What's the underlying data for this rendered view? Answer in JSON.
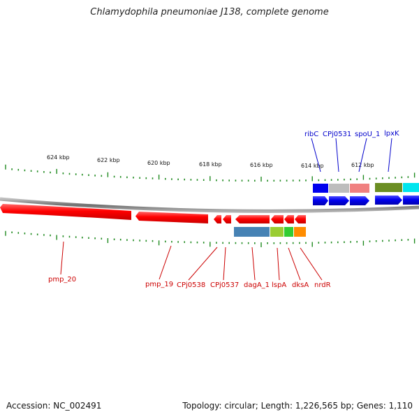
{
  "title": "Chlamydophila pneumoniae J138, complete genome",
  "footer": {
    "accession": "Accession: NC_002491",
    "summary": "Topology: circular; Length: 1,226,565 bp; Genes: 1,110"
  },
  "colors": {
    "backbone": "#7f7f7f",
    "tick": "#1f8a1f",
    "reverse_label": "#cc0000",
    "forward_label": "#0000cc"
  },
  "scale_labels": [
    "624 kbp",
    "622 kbp",
    "620 kbp",
    "618 kbp",
    "616 kbp",
    "614 kbp",
    "612 kbp"
  ],
  "forward_genes": [
    {
      "name": "ribC",
      "color": "#0000ee"
    },
    {
      "name": "CPj0531",
      "color": "#0000ee"
    },
    {
      "name": "spoU_1",
      "color": "#0000ee"
    },
    {
      "name": "lpxK",
      "color": "#0000ee"
    }
  ],
  "reverse_genes": [
    {
      "name": "pmp_20",
      "color": "#dd0000"
    },
    {
      "name": "pmp_19",
      "color": "#dd0000"
    },
    {
      "name": "CPj0538",
      "color": "#dd0000"
    },
    {
      "name": "CPj0537",
      "color": "#dd0000"
    },
    {
      "name": "dagA_1",
      "color": "#dd0000"
    },
    {
      "name": "lspA",
      "color": "#dd0000"
    },
    {
      "name": "dksA",
      "color": "#dd0000"
    },
    {
      "name": "nrdR",
      "color": "#dd0000"
    }
  ],
  "category_colors": [
    "#0000ee",
    "#bdbdbd",
    "#f08080",
    "#6b8e23",
    "#00e5ee",
    "#4682b4",
    "#9acd32",
    "#32cd32",
    "#ff8c00"
  ]
}
